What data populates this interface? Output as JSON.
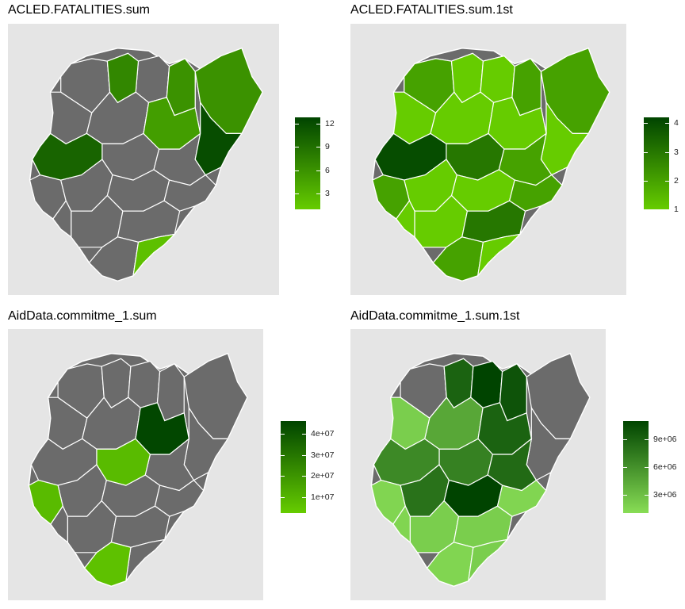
{
  "chart_data": [
    {
      "type": "choropleth",
      "title": "ACLED.FATALITIES.sum",
      "legend": {
        "range": [
          1,
          12.8
        ],
        "ticks": [
          3,
          6,
          9,
          12
        ],
        "tick_labels": [
          "3",
          "6",
          "9",
          "12"
        ],
        "low_color": "#66cc00",
        "high_color": "#004400"
      },
      "missing_color": "#6b6b6b",
      "regions_with_values": [
        {
          "value": 7
        },
        {
          "value": 6
        },
        {
          "value": 5
        },
        {
          "value": 6
        },
        {
          "value": 12
        },
        {
          "value": 10
        },
        {
          "value": 2
        }
      ]
    },
    {
      "type": "choropleth",
      "title": "ACLED.FATALITIES.sum.1st",
      "legend": {
        "range": [
          1,
          4.2
        ],
        "ticks": [
          1,
          2,
          3,
          4
        ],
        "tick_labels": [
          "1",
          "2",
          "3",
          "4"
        ],
        "low_color": "#66cc00",
        "high_color": "#004400"
      },
      "missing_color": "#6b6b6b",
      "regions_with_values": [
        {
          "value": 2
        },
        {
          "value": 1
        },
        {
          "value": 1
        },
        {
          "value": 2
        },
        {
          "value": 2
        },
        {
          "value": 1
        },
        {
          "value": 1
        },
        {
          "value": 1
        },
        {
          "value": 1
        },
        {
          "value": 3
        },
        {
          "value": 2
        },
        {
          "value": 4
        },
        {
          "value": 1
        },
        {
          "value": 2
        },
        {
          "value": 1
        },
        {
          "value": 1
        },
        {
          "value": 3
        },
        {
          "value": 2
        },
        {
          "value": 2
        },
        {
          "value": 1
        },
        {
          "value": 1
        }
      ]
    },
    {
      "type": "choropleth",
      "title": "AidData.commitme_1.sum",
      "legend": {
        "range": [
          2500000,
          46000000
        ],
        "ticks": [
          10000000,
          20000000,
          30000000,
          40000000
        ],
        "tick_labels": [
          "1e+07",
          "2e+07",
          "3e+07",
          "4e+07"
        ],
        "low_color": "#66cc00",
        "high_color": "#004400"
      },
      "missing_color": "#6b6b6b",
      "regions_with_values": [
        {
          "value": 45000000
        },
        {
          "value": 8000000
        },
        {
          "value": 8000000
        },
        {
          "value": 6000000
        }
      ]
    },
    {
      "type": "choropleth",
      "title": "AidData.commitme_1.sum.1st",
      "legend": {
        "range": [
          1000000,
          11000000
        ],
        "ticks": [
          3000000,
          6000000,
          9000000
        ],
        "tick_labels": [
          "3e+06",
          "6e+06",
          "9e+06"
        ],
        "low_color": "#88dd55",
        "high_color": "#004400"
      },
      "missing_color": "#6b6b6b",
      "regions_with_values": [
        {
          "value": 9000000
        },
        {
          "value": 11000000
        },
        {
          "value": 10000000
        },
        {
          "value": 4500000
        },
        {
          "value": 9000000
        },
        {
          "value": 7000000
        },
        {
          "value": 8500000
        },
        {
          "value": 2000000
        },
        {
          "value": 6500000
        },
        {
          "value": 8000000
        },
        {
          "value": 11000000
        },
        {
          "value": 1500000
        },
        {
          "value": 2000000
        },
        {
          "value": 2000000
        },
        {
          "value": 1500000
        },
        {
          "value": 2000000
        },
        {
          "value": 1500000
        },
        {
          "value": 1500000
        }
      ]
    }
  ]
}
